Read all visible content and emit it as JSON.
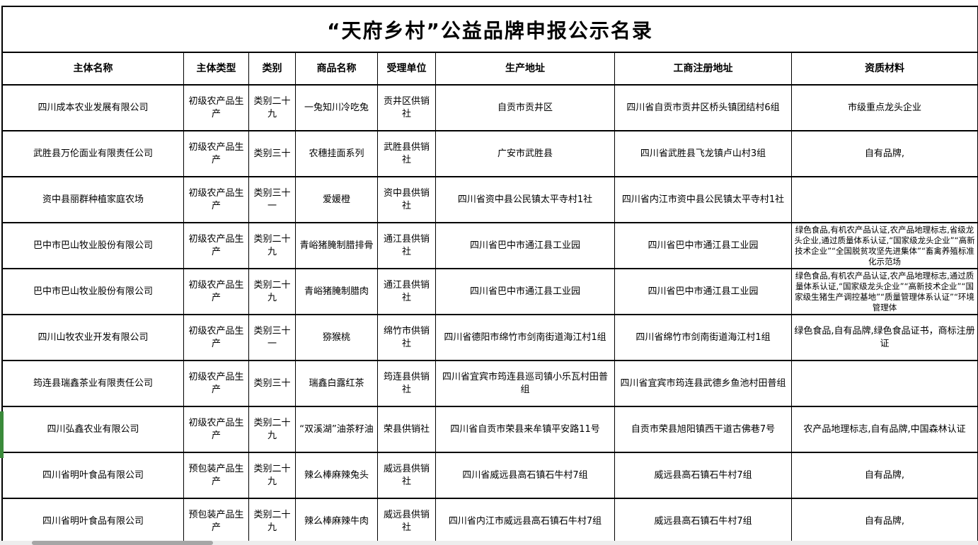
{
  "title": "“天府乡村”公益品牌申报公示名录",
  "columns": {
    "name": "主体名称",
    "type": "主体类型",
    "category": "类别",
    "product": "商品名称",
    "unit": "受理单位",
    "prod_addr": "生产地址",
    "reg_addr": "工商注册地址",
    "qual": "资质材料"
  },
  "rows": [
    {
      "name": "四川成本农业发展有限公司",
      "type": "初级农产品生产",
      "category": "类别二十九",
      "product": "一兔知川冷吃兔",
      "unit": "贡井区供销社",
      "prod_addr": "自贡市贡井区",
      "reg_addr": "四川省自贡市贡井区桥头镇团结村6组",
      "qual": "市级重点龙头企业"
    },
    {
      "name": "武胜县万伦面业有限责任公司",
      "type": "初级农产品生产",
      "category": "类别三十",
      "product": "农穗挂面系列",
      "unit": "武胜县供销社",
      "prod_addr": "广安市武胜县",
      "reg_addr": "四川省武胜县飞龙镇卢山村3组",
      "qual": "自有品牌,"
    },
    {
      "name": "资中县丽群种植家庭农场",
      "type": "初级农产品生产",
      "category": "类别三十一",
      "product": "爱媛橙",
      "unit": "资中县供销社",
      "prod_addr": "四川省资中县公民镇太平寺村1社",
      "reg_addr": "四川省内江市资中县公民镇太平寺村1社",
      "qual": ""
    },
    {
      "name": "巴中市巴山牧业股份有限公司",
      "type": "初级农产品生产",
      "category": "类别二十九",
      "product": "青峪猪腌制腊排骨",
      "unit": "通江县供销社",
      "prod_addr": "四川省巴中市通江县工业园",
      "reg_addr": "四川省巴中市通江县工业园",
      "qual": "绿色食品,有机农产品认证,农产品地理标志,省级龙头企业,通过质量体系认证,“国家级龙头企业”“高新技术企业”“全国脱贫攻坚先进集体”“畜禽养殖标准化示范场"
    },
    {
      "name": "巴中市巴山牧业股份有限公司",
      "type": "初级农产品生产",
      "category": "类别二十九",
      "product": "青峪猪腌制腊肉",
      "unit": "通江县供销社",
      "prod_addr": "四川省巴中市通江县工业园",
      "reg_addr": "四川省巴中市通江县工业园",
      "qual": "绿色食品,有机农产品认证,农产品地理标志,通过质量体系认证,“国家级龙头企业”“高新技术企业”“国家级生猪生产调控基地”“质量管理体系认证”“环境管理体"
    },
    {
      "name": "四川山牧农业开发有限公司",
      "type": "初级农产品生产",
      "category": "类别三十一",
      "product": "猕猴桃",
      "unit": "绵竹市供销社",
      "prod_addr": "四川省德阳市绵竹市剑南街道海江村1组",
      "reg_addr": "四川省绵竹市剑南街道海江村1组",
      "qual": "绿色食品,自有品牌,绿色食品证书，商标注册证"
    },
    {
      "name": "筠连县瑞鑫茶业有限责任公司",
      "type": "初级农产品生产",
      "category": "类别三十",
      "product": "瑞鑫白露红茶",
      "unit": "筠连县供销社",
      "prod_addr": "四川省宜宾市筠连县巡司镇小乐瓦村田普组",
      "reg_addr": "四川省宜宾市筠连县武德乡鱼池村田普组",
      "qual": ""
    },
    {
      "name": "四川弘鑫农业有限公司",
      "type": "初级农产品生产",
      "category": "类别二十九",
      "product": "“双溪湖”油茶籽油",
      "unit": "荣县供销社",
      "prod_addr": "四川省自贡市荣县来牟镇平安路11号",
      "reg_addr": "自贡市荣县旭阳镇西干道古佛巷7号",
      "qual": "农产品地理标志,自有品牌,中国森林认证"
    },
    {
      "name": "四川省明叶食品有限公司",
      "type": "预包装产品生产",
      "category": "类别二十九",
      "product": "辣么棒麻辣兔头",
      "unit": "威远县供销社",
      "prod_addr": "四川省威远县高石镇石牛村7组",
      "reg_addr": "威远县高石镇石牛村7组",
      "qual": "自有品牌,"
    },
    {
      "name": "四川省明叶食品有限公司",
      "type": "预包装产品生产",
      "category": "类别二十九",
      "product": "辣么棒麻辣牛肉",
      "unit": "威远县供销社",
      "prod_addr": "四川省内江市威远县高石镇石牛村7组",
      "reg_addr": "威远县高石镇石牛村7组",
      "qual": "自有品牌,"
    }
  ],
  "colors": {
    "selection_green": "#3a8a3a",
    "scrollbar_thumb": "#a6a6a6",
    "scrollbar_track": "#ededed"
  }
}
